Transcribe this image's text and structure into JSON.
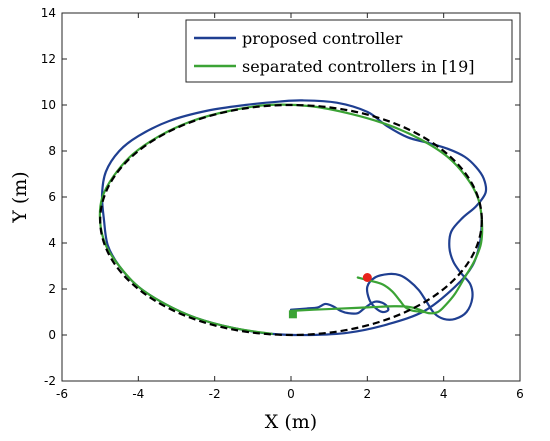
{
  "chart_data": {
    "type": "line",
    "title": "",
    "xlabel": "X (m)",
    "ylabel": "Y (m)",
    "xlim": [
      -6,
      6
    ],
    "ylim": [
      -2,
      14
    ],
    "xticks": [
      -6,
      -4,
      -2,
      0,
      2,
      4,
      6
    ],
    "yticks": [
      -2,
      0,
      2,
      4,
      6,
      8,
      10,
      12,
      14
    ],
    "grid": false,
    "legend_position": "top-right",
    "reference": {
      "style": "dashed",
      "color": "#000000",
      "center": [
        0,
        5
      ],
      "radius_x": 5,
      "radius_y": 5
    },
    "series": [
      {
        "name": "proposed controller",
        "color": "#1f3f91",
        "points": [
          [
            0,
            1.1
          ],
          [
            0.4,
            1.15
          ],
          [
            0.7,
            1.2
          ],
          [
            0.9,
            1.35
          ],
          [
            1.1,
            1.25
          ],
          [
            1.3,
            1.05
          ],
          [
            1.5,
            0.95
          ],
          [
            1.75,
            0.95
          ],
          [
            1.95,
            1.2
          ],
          [
            2.2,
            1.45
          ],
          [
            2.45,
            1.35
          ],
          [
            2.55,
            1.1
          ],
          [
            2.4,
            1.0
          ],
          [
            2.2,
            1.2
          ],
          [
            2.05,
            1.55
          ],
          [
            2.0,
            2.1
          ],
          [
            2.2,
            2.5
          ],
          [
            2.55,
            2.65
          ],
          [
            2.85,
            2.6
          ],
          [
            3.1,
            2.35
          ],
          [
            3.35,
            1.95
          ],
          [
            3.55,
            1.45
          ],
          [
            3.75,
            0.95
          ],
          [
            4.0,
            0.7
          ],
          [
            4.3,
            0.7
          ],
          [
            4.6,
            1.0
          ],
          [
            4.75,
            1.6
          ],
          [
            4.7,
            2.2
          ],
          [
            4.45,
            2.7
          ],
          [
            4.25,
            3.2
          ],
          [
            4.15,
            3.8
          ],
          [
            4.2,
            4.5
          ],
          [
            4.5,
            5.1
          ],
          [
            4.85,
            5.6
          ],
          [
            5.1,
            6.2
          ],
          [
            5.05,
            6.8
          ],
          [
            4.85,
            7.3
          ],
          [
            4.55,
            7.75
          ],
          [
            4.1,
            8.1
          ],
          [
            3.6,
            8.35
          ],
          [
            3.05,
            8.6
          ],
          [
            2.5,
            9.1
          ],
          [
            2.0,
            9.7
          ],
          [
            1.2,
            10.1
          ],
          [
            0.3,
            10.2
          ],
          [
            -0.3,
            10.15
          ],
          [
            -1.2,
            10.0
          ],
          [
            -2.2,
            9.75
          ],
          [
            -3.2,
            9.3
          ],
          [
            -4.0,
            8.65
          ],
          [
            -4.5,
            8.0
          ],
          [
            -4.85,
            7.1
          ],
          [
            -4.95,
            6.1
          ],
          [
            -4.9,
            5.0
          ],
          [
            -4.8,
            3.9
          ],
          [
            -4.5,
            3.0
          ],
          [
            -4.0,
            2.1
          ],
          [
            -3.3,
            1.35
          ],
          [
            -2.5,
            0.75
          ],
          [
            -1.5,
            0.3
          ],
          [
            -0.5,
            0.05
          ],
          [
            0.5,
            0.0
          ],
          [
            1.5,
            0.1
          ],
          [
            2.5,
            0.45
          ],
          [
            3.5,
            1.05
          ],
          [
            4.3,
            2.1
          ],
          [
            4.75,
            3.0
          ],
          [
            4.95,
            4.0
          ],
          [
            5.0,
            5.0
          ]
        ]
      },
      {
        "name": "separated controllers in [19]",
        "color": "#3ba335",
        "points": [
          [
            0,
            1.05
          ],
          [
            0.6,
            1.1
          ],
          [
            1.3,
            1.15
          ],
          [
            2.0,
            1.2
          ],
          [
            2.7,
            1.25
          ],
          [
            3.1,
            1.22
          ],
          [
            3.4,
            1.08
          ],
          [
            3.6,
            0.95
          ],
          [
            3.85,
            1.0
          ],
          [
            4.05,
            1.3
          ],
          [
            4.3,
            1.8
          ],
          [
            4.55,
            2.5
          ],
          [
            4.8,
            3.2
          ],
          [
            4.98,
            4.0
          ],
          [
            5.0,
            5.0
          ],
          [
            4.9,
            5.95
          ],
          [
            4.6,
            6.85
          ],
          [
            4.1,
            7.75
          ],
          [
            3.4,
            8.5
          ],
          [
            2.6,
            9.1
          ],
          [
            1.6,
            9.6
          ],
          [
            0.5,
            9.95
          ],
          [
            -0.6,
            10.0
          ],
          [
            -1.6,
            9.75
          ],
          [
            -2.6,
            9.3
          ],
          [
            -3.45,
            8.65
          ],
          [
            -4.15,
            7.85
          ],
          [
            -4.65,
            6.9
          ],
          [
            -4.95,
            5.95
          ],
          [
            -5.0,
            4.9
          ],
          [
            -4.85,
            3.9
          ],
          [
            -4.5,
            3.0
          ],
          [
            -4.0,
            2.1
          ],
          [
            -3.3,
            1.35
          ],
          [
            -2.5,
            0.75
          ],
          [
            -1.5,
            0.3
          ],
          [
            -0.5,
            0.05
          ]
        ]
      },
      {
        "name": "",
        "color": "#3ba335",
        "points": [
          [
            1.75,
            2.5
          ],
          [
            2.1,
            2.35
          ],
          [
            2.4,
            2.2
          ],
          [
            2.65,
            1.9
          ],
          [
            2.85,
            1.5
          ],
          [
            3.0,
            1.2
          ],
          [
            3.2,
            1.05
          ],
          [
            3.5,
            1.0
          ]
        ]
      }
    ],
    "markers": [
      {
        "type": "circle",
        "color": "#e8221c",
        "x": 2.0,
        "y": 2.5
      },
      {
        "type": "square",
        "color": "#3ba335",
        "x": 0.05,
        "y": 0.9
      }
    ]
  }
}
